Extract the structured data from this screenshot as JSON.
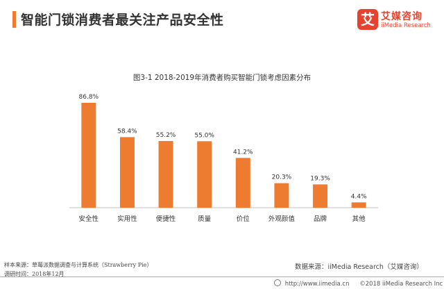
{
  "header": {
    "title": "智能门锁消费者最关注产品安全性",
    "accent_color": "#ee7c30"
  },
  "logo": {
    "mark": "艾",
    "name_cn": "艾媒咨询",
    "name_en": "iiMedia Research"
  },
  "chart_data": {
    "type": "bar",
    "title": "图3-1 2018-2019年消费者购买智能门锁考虑因素分布",
    "categories": [
      "安全性",
      "实用性",
      "便捷性",
      "质量",
      "价位",
      "外观颜值",
      "品牌",
      "其他"
    ],
    "values": [
      86.8,
      58.4,
      55.2,
      55.0,
      41.2,
      20.3,
      19.3,
      4.4
    ],
    "value_labels": [
      "86.8%",
      "58.4%",
      "55.2%",
      "55.0%",
      "41.2%",
      "20.3%",
      "19.3%",
      "4.4%"
    ],
    "unit": "%",
    "ylim": [
      0,
      100
    ],
    "grid": false,
    "legend": "none",
    "bar_color": "#ee7c30"
  },
  "footer": {
    "sample": "样本来源：草莓派数据调查与计算系统（Strawberry Pie）",
    "survey_time": "调研时间：2018年12月",
    "source": "数据来源：iiMedia Research（艾媒咨询）",
    "url": "http://www.iimedia.cn",
    "copyright": "©2018  iiMedia Research Inc"
  }
}
